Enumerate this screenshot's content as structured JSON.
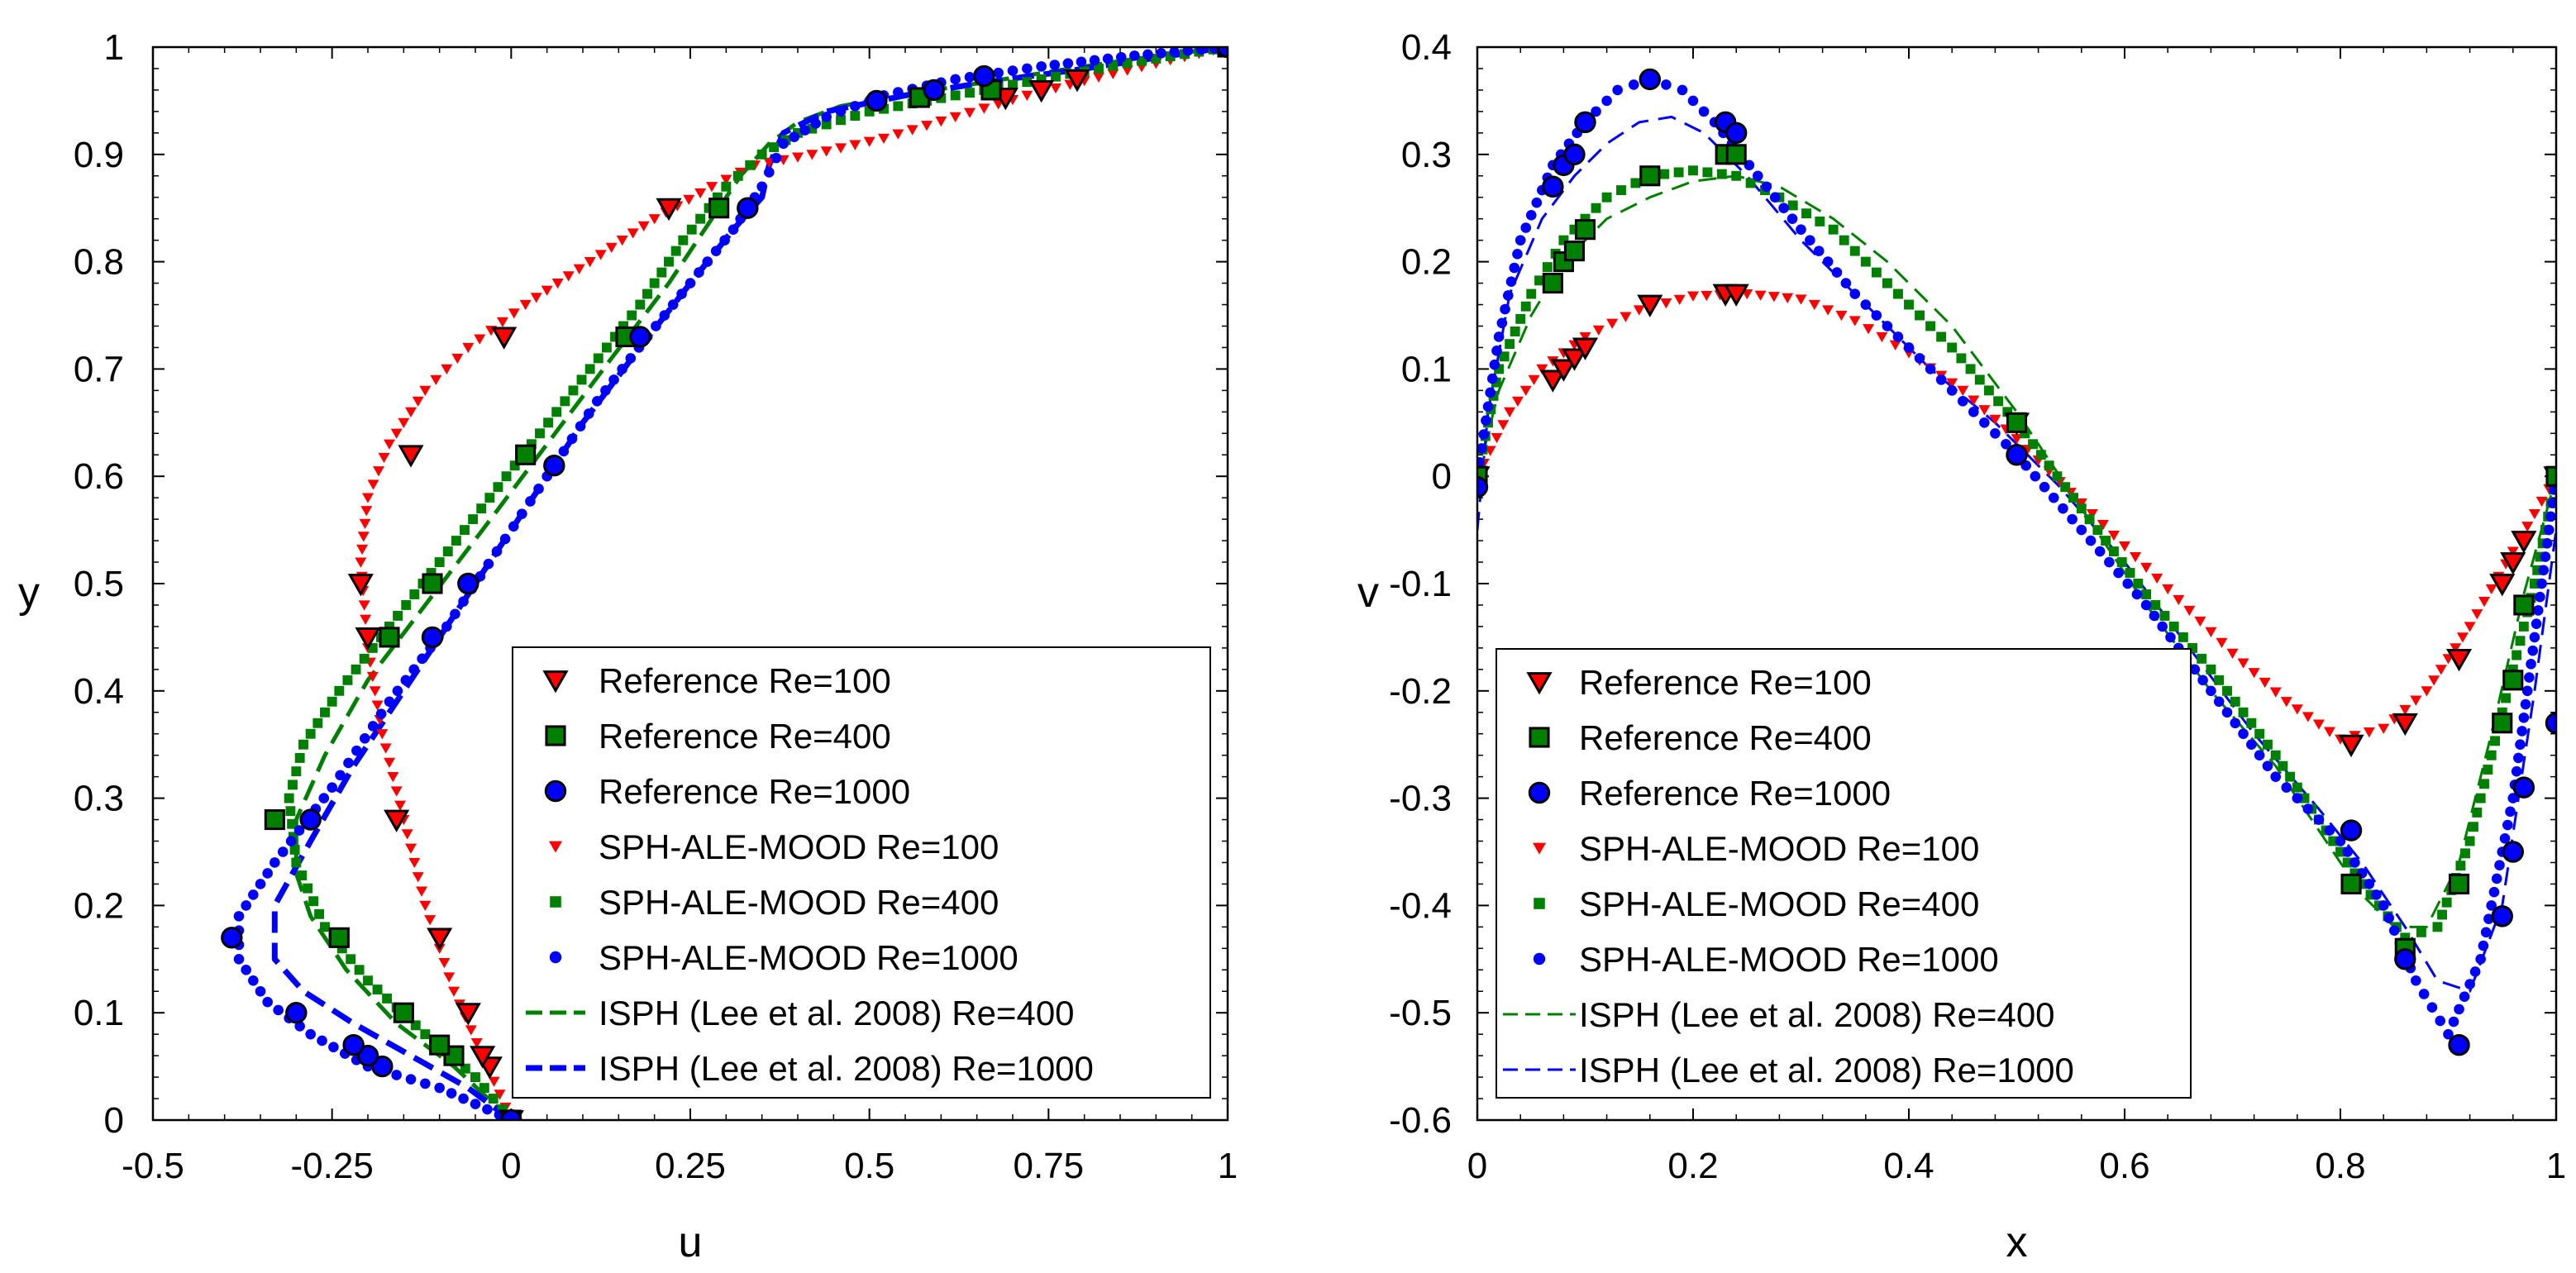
{
  "colors": {
    "red": "#ff0000",
    "green": "#008000",
    "blue": "#0000ff",
    "axis": "#000000"
  },
  "chart_data": [
    {
      "type": "line",
      "title": "",
      "xlabel": "u",
      "ylabel": "y",
      "xlim": [
        -0.5,
        1
      ],
      "ylim": [
        0,
        1
      ],
      "xticks": [
        -0.5,
        -0.25,
        0,
        0.25,
        0.5,
        0.75,
        1
      ],
      "xtick_labels": [
        "-0.5",
        "-0.25",
        "0",
        "0.25",
        "0.5",
        "0.75",
        "1"
      ],
      "yticks": [
        0,
        0.1,
        0.2,
        0.3,
        0.4,
        0.5,
        0.6,
        0.7,
        0.8,
        0.9,
        1
      ],
      "ytick_labels": [
        "0",
        "0.1",
        "0.2",
        "0.3",
        "0.4",
        "0.5",
        "0.6",
        "0.7",
        "0.8",
        "0.9",
        "1"
      ],
      "legend_position": "lower-right",
      "series": [
        {
          "name": "Reference Re=100",
          "kind": "marker",
          "marker": "triangle-down",
          "color": "red",
          "edge": "black",
          "x": [
            0,
            -0.03,
            -0.04,
            -0.06,
            -0.1,
            -0.16,
            -0.2,
            -0.21,
            -0.14,
            -0.01,
            0.22,
            0.69,
            0.74,
            0.79,
            1
          ],
          "y": [
            0,
            0.05,
            0.06,
            0.1,
            0.17,
            0.28,
            0.45,
            0.5,
            0.62,
            0.73,
            0.85,
            0.953,
            0.96,
            0.97,
            1
          ]
        },
        {
          "name": "Reference Re=400",
          "kind": "marker",
          "marker": "square",
          "color": "green",
          "edge": "black",
          "x": [
            0,
            -0.08,
            -0.1,
            -0.15,
            -0.24,
            -0.33,
            -0.17,
            -0.11,
            0.02,
            0.16,
            0.29,
            0.57,
            0.67,
            1
          ],
          "y": [
            0,
            0.06,
            0.07,
            0.1,
            0.17,
            0.28,
            0.45,
            0.5,
            0.62,
            0.73,
            0.85,
            0.953,
            0.96,
            1
          ]
        },
        {
          "name": "Reference Re=1000",
          "kind": "marker",
          "marker": "circle",
          "color": "blue",
          "edge": "black",
          "x": [
            0,
            -0.18,
            -0.2,
            -0.22,
            -0.3,
            -0.39,
            -0.28,
            -0.11,
            -0.06,
            0.06,
            0.18,
            0.33,
            0.51,
            0.59,
            0.66,
            1
          ],
          "y": [
            0,
            0.05,
            0.06,
            0.07,
            0.1,
            0.17,
            0.28,
            0.45,
            0.5,
            0.61,
            0.73,
            0.85,
            0.95,
            0.96,
            0.973,
            1
          ]
        },
        {
          "name": "SPH-ALE-MOOD Re=100",
          "kind": "dots",
          "marker": "triangle-down",
          "color": "red",
          "x": [
            0,
            -0.04,
            -0.08,
            -0.12,
            -0.15,
            -0.18,
            -0.2,
            -0.21,
            -0.2,
            -0.17,
            -0.12,
            -0.06,
            0.02,
            0.11,
            0.2,
            0.28,
            0.34,
            0.42,
            0.52,
            0.62,
            0.72,
            0.82,
            0.92,
            1
          ],
          "y": [
            0,
            0.06,
            0.12,
            0.2,
            0.28,
            0.36,
            0.44,
            0.52,
            0.58,
            0.63,
            0.68,
            0.72,
            0.76,
            0.8,
            0.84,
            0.87,
            0.89,
            0.9,
            0.915,
            0.935,
            0.955,
            0.972,
            0.988,
            1
          ]
        },
        {
          "name": "SPH-ALE-MOOD Re=400",
          "kind": "dots",
          "marker": "square",
          "color": "green",
          "x": [
            0,
            -0.05,
            -0.12,
            -0.2,
            -0.26,
            -0.3,
            -0.31,
            -0.29,
            -0.24,
            -0.17,
            -0.1,
            -0.03,
            0.04,
            0.11,
            0.18,
            0.24,
            0.3,
            0.35,
            0.4,
            0.5,
            0.62,
            0.74,
            0.86,
            1
          ],
          "y": [
            0,
            0.04,
            0.08,
            0.13,
            0.18,
            0.24,
            0.3,
            0.35,
            0.4,
            0.46,
            0.52,
            0.58,
            0.64,
            0.7,
            0.76,
            0.82,
            0.87,
            0.9,
            0.92,
            0.94,
            0.955,
            0.97,
            0.985,
            1
          ]
        },
        {
          "name": "SPH-ALE-MOOD Re=1000",
          "kind": "dots",
          "marker": "circle",
          "color": "blue",
          "x": [
            0,
            -0.1,
            -0.2,
            -0.28,
            -0.34,
            -0.38,
            -0.38,
            -0.33,
            -0.25,
            -0.17,
            -0.09,
            -0.02,
            0.05,
            0.12,
            0.19,
            0.25,
            0.31,
            0.35,
            0.38,
            0.44,
            0.52,
            0.62,
            0.74,
            0.87,
            1
          ],
          "y": [
            0,
            0.03,
            0.05,
            0.08,
            0.11,
            0.15,
            0.19,
            0.24,
            0.31,
            0.39,
            0.46,
            0.53,
            0.6,
            0.67,
            0.73,
            0.78,
            0.83,
            0.87,
            0.91,
            0.935,
            0.955,
            0.97,
            0.982,
            0.992,
            1
          ]
        },
        {
          "name": "ISPH (Lee et al. 2008) Re=400",
          "kind": "dashed",
          "color": "green",
          "width": 5,
          "x": [
            0,
            -0.08,
            -0.16,
            -0.23,
            -0.28,
            -0.3,
            -0.3,
            -0.26,
            -0.2,
            -0.12,
            -0.04,
            0.05,
            0.14,
            0.22,
            0.28,
            0.32,
            0.36,
            0.4,
            0.46,
            0.56,
            0.66,
            0.76,
            0.88,
            1
          ],
          "y": [
            0,
            0.05,
            0.09,
            0.14,
            0.19,
            0.23,
            0.28,
            0.34,
            0.41,
            0.48,
            0.55,
            0.63,
            0.71,
            0.78,
            0.84,
            0.88,
            0.91,
            0.93,
            0.945,
            0.957,
            0.967,
            0.978,
            0.99,
            1
          ]
        },
        {
          "name": "ISPH (Lee et al. 2008) Re=1000",
          "kind": "dashed",
          "color": "blue",
          "width": 7,
          "x": [
            0,
            -0.06,
            -0.14,
            -0.22,
            -0.29,
            -0.33,
            -0.33,
            -0.28,
            -0.22,
            -0.14,
            -0.06,
            0.02,
            0.1,
            0.18,
            0.25,
            0.31,
            0.35,
            0.36,
            0.38,
            0.44,
            0.55,
            0.66,
            0.78,
            0.9,
            1
          ],
          "y": [
            0,
            0.03,
            0.06,
            0.09,
            0.12,
            0.15,
            0.2,
            0.26,
            0.33,
            0.41,
            0.49,
            0.57,
            0.65,
            0.72,
            0.78,
            0.83,
            0.86,
            0.89,
            0.92,
            0.94,
            0.955,
            0.967,
            0.978,
            0.99,
            1
          ]
        }
      ]
    },
    {
      "type": "line",
      "title": "",
      "xlabel": "x",
      "ylabel": "v",
      "xlim": [
        0,
        1
      ],
      "ylim": [
        -0.6,
        0.4
      ],
      "xticks": [
        0,
        0.2,
        0.4,
        0.6,
        0.8,
        1
      ],
      "xtick_labels": [
        "0",
        "0.2",
        "0.4",
        "0.6",
        "0.8",
        "1"
      ],
      "yticks": [
        -0.6,
        -0.5,
        -0.4,
        -0.3,
        -0.2,
        -0.1,
        0,
        0.1,
        0.2,
        0.3,
        0.4
      ],
      "ytick_labels": [
        "-0.6",
        "-0.5",
        "-0.4",
        "-0.3",
        "-0.2",
        "-0.1",
        "0",
        "0.1",
        "0.2",
        "0.3",
        "0.4"
      ],
      "legend_position": "lower-left",
      "series": [
        {
          "name": "Reference Re=100",
          "kind": "marker",
          "marker": "triangle-down",
          "color": "red",
          "edge": "black",
          "x": [
            0,
            0.07,
            0.08,
            0.09,
            0.1,
            0.16,
            0.23,
            0.24,
            0.5,
            0.81,
            0.86,
            0.91,
            0.95,
            0.96,
            0.97,
            1
          ],
          "y": [
            0,
            0.09,
            0.1,
            0.11,
            0.12,
            0.16,
            0.17,
            0.17,
            0.05,
            -0.25,
            -0.23,
            -0.17,
            -0.1,
            -0.08,
            -0.06,
            0
          ]
        },
        {
          "name": "Reference Re=400",
          "kind": "marker",
          "marker": "square",
          "color": "green",
          "edge": "black",
          "x": [
            0,
            0.07,
            0.08,
            0.09,
            0.1,
            0.16,
            0.23,
            0.24,
            0.5,
            0.81,
            0.86,
            0.91,
            0.95,
            0.96,
            0.97,
            1
          ],
          "y": [
            0,
            0.18,
            0.2,
            0.21,
            0.23,
            0.28,
            0.3,
            0.3,
            0.05,
            -0.38,
            -0.44,
            -0.38,
            -0.23,
            -0.19,
            -0.12,
            0
          ]
        },
        {
          "name": "Reference Re=1000",
          "kind": "marker",
          "marker": "circle",
          "color": "blue",
          "edge": "black",
          "x": [
            0,
            0.07,
            0.08,
            0.09,
            0.1,
            0.16,
            0.23,
            0.24,
            0.5,
            0.81,
            0.86,
            0.91,
            0.95,
            0.96,
            0.97,
            1
          ],
          "y": [
            -0.01,
            0.27,
            0.29,
            0.3,
            0.33,
            0.37,
            0.33,
            0.32,
            0.02,
            -0.33,
            -0.45,
            -0.53,
            -0.41,
            -0.35,
            -0.29,
            -0.23
          ]
        },
        {
          "name": "SPH-ALE-MOOD Re=100",
          "kind": "dots",
          "marker": "triangle-down",
          "color": "red",
          "x": [
            0,
            0.03,
            0.06,
            0.1,
            0.15,
            0.2,
            0.25,
            0.3,
            0.35,
            0.4,
            0.45,
            0.5,
            0.55,
            0.6,
            0.65,
            0.7,
            0.75,
            0.8,
            0.84,
            0.88,
            0.92,
            0.96,
            1
          ],
          "y": [
            0,
            0.06,
            0.1,
            0.13,
            0.155,
            0.168,
            0.17,
            0.165,
            0.145,
            0.115,
            0.08,
            0.035,
            -0.015,
            -0.065,
            -0.115,
            -0.165,
            -0.21,
            -0.245,
            -0.235,
            -0.2,
            -0.14,
            -0.07,
            0
          ]
        },
        {
          "name": "SPH-ALE-MOOD Re=400",
          "kind": "dots",
          "marker": "square",
          "color": "green",
          "x": [
            0,
            0.02,
            0.05,
            0.08,
            0.12,
            0.16,
            0.2,
            0.24,
            0.28,
            0.33,
            0.38,
            0.44,
            0.5,
            0.56,
            0.62,
            0.68,
            0.74,
            0.78,
            0.82,
            0.86,
            0.89,
            0.92,
            0.95,
            0.98,
            1
          ],
          "y": [
            0,
            0.1,
            0.17,
            0.22,
            0.26,
            0.28,
            0.285,
            0.28,
            0.26,
            0.23,
            0.18,
            0.12,
            0.05,
            -0.03,
            -0.11,
            -0.18,
            -0.26,
            -0.32,
            -0.38,
            -0.43,
            -0.42,
            -0.34,
            -0.22,
            -0.1,
            0
          ]
        },
        {
          "name": "SPH-ALE-MOOD Re=1000",
          "kind": "dots",
          "marker": "circle",
          "color": "blue",
          "x": [
            0,
            0.02,
            0.04,
            0.07,
            0.1,
            0.13,
            0.16,
            0.19,
            0.22,
            0.26,
            0.3,
            0.35,
            0.4,
            0.45,
            0.5,
            0.56,
            0.62,
            0.68,
            0.74,
            0.8,
            0.84,
            0.87,
            0.9,
            0.93,
            0.96,
            0.98,
            1
          ],
          "y": [
            0,
            0.13,
            0.22,
            0.29,
            0.33,
            0.36,
            0.37,
            0.36,
            0.33,
            0.28,
            0.23,
            0.17,
            0.12,
            0.07,
            0.02,
            -0.05,
            -0.12,
            -0.2,
            -0.28,
            -0.34,
            -0.4,
            -0.47,
            -0.52,
            -0.45,
            -0.3,
            -0.15,
            0
          ]
        },
        {
          "name": "ISPH (Lee et al. 2008) Re=400",
          "kind": "dashed",
          "color": "green",
          "width": 3,
          "x": [
            0,
            0.02,
            0.05,
            0.08,
            0.12,
            0.16,
            0.2,
            0.24,
            0.28,
            0.33,
            0.38,
            0.44,
            0.5,
            0.56,
            0.62,
            0.68,
            0.74,
            0.78,
            0.82,
            0.85,
            0.88,
            0.91,
            0.94,
            0.97,
            1
          ],
          "y": [
            0,
            0.08,
            0.15,
            0.2,
            0.24,
            0.26,
            0.275,
            0.28,
            0.27,
            0.24,
            0.2,
            0.14,
            0.06,
            -0.03,
            -0.12,
            -0.2,
            -0.27,
            -0.33,
            -0.39,
            -0.42,
            -0.42,
            -0.36,
            -0.24,
            -0.11,
            0
          ]
        },
        {
          "name": "ISPH (Lee et al. 2008) Re=1000",
          "kind": "dashed",
          "color": "blue",
          "width": 3,
          "x": [
            0,
            0.01,
            0.03,
            0.06,
            0.09,
            0.12,
            0.15,
            0.18,
            0.21,
            0.25,
            0.3,
            0.36,
            0.42,
            0.48,
            0.54,
            0.6,
            0.66,
            0.72,
            0.78,
            0.82,
            0.86,
            0.89,
            0.92,
            0.95,
            0.98,
            1
          ],
          "y": [
            -0.05,
            0.06,
            0.17,
            0.24,
            0.28,
            0.31,
            0.33,
            0.335,
            0.32,
            0.28,
            0.22,
            0.16,
            0.1,
            0.05,
            -0.01,
            -0.08,
            -0.16,
            -0.24,
            -0.31,
            -0.36,
            -0.42,
            -0.47,
            -0.48,
            -0.4,
            -0.2,
            -0.05
          ]
        }
      ]
    }
  ]
}
